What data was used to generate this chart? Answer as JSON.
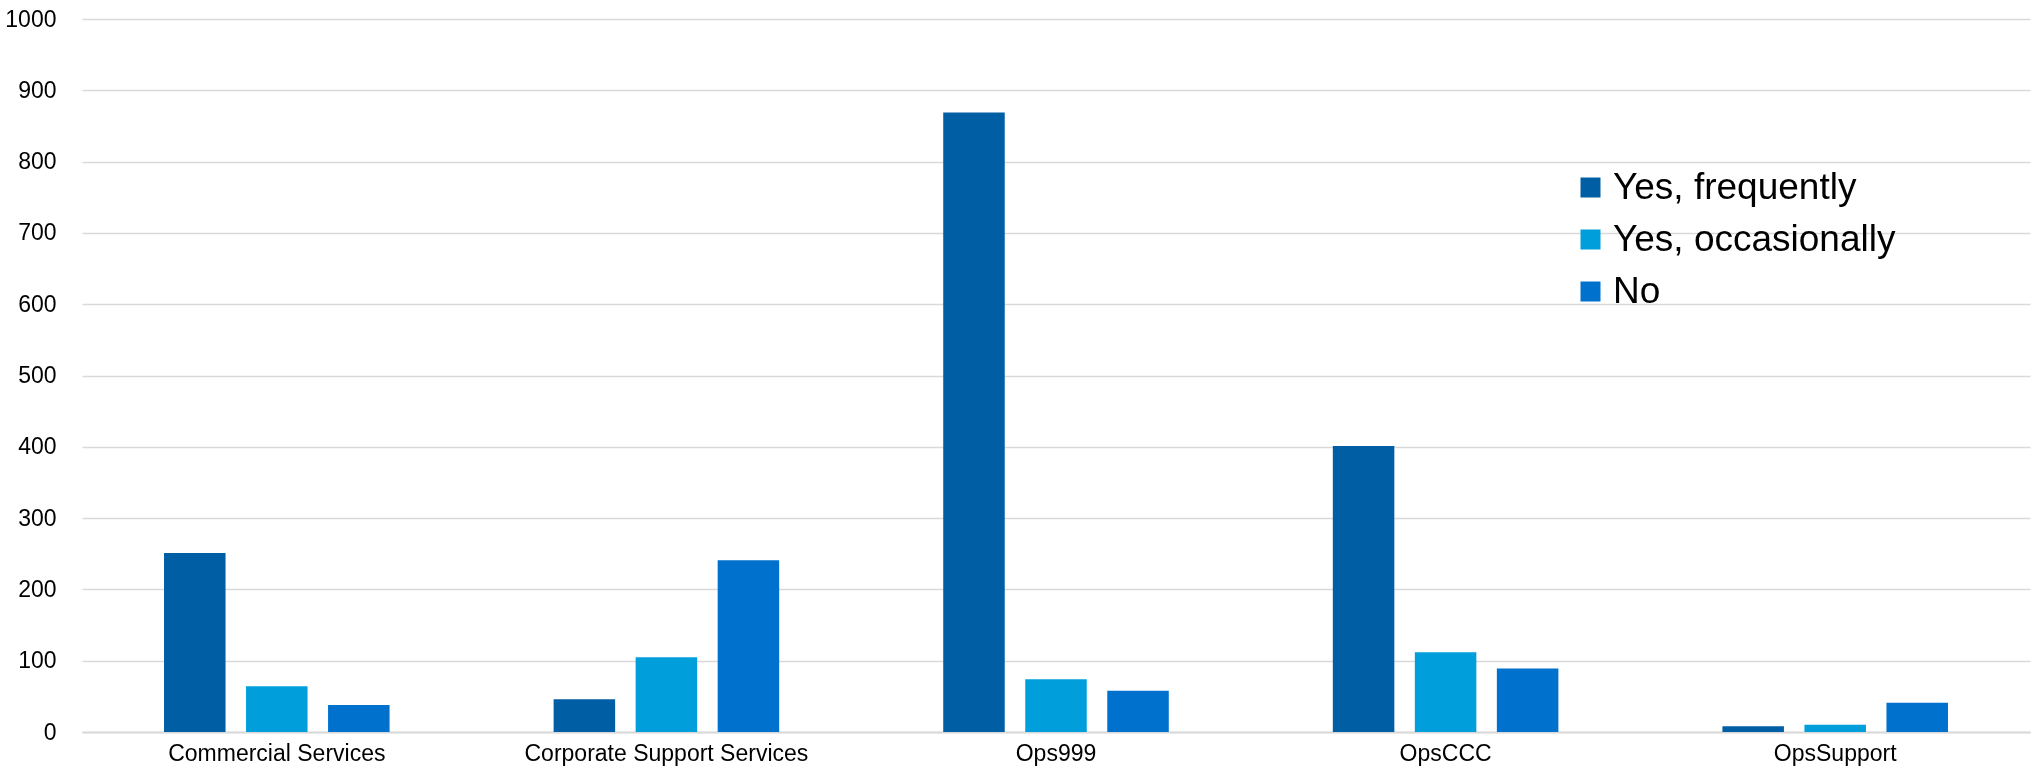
{
  "chart_data": {
    "type": "bar",
    "categories": [
      "Commercial Services",
      "Corporate Support Services",
      "Ops999",
      "OpsCCC",
      "OpsSupport"
    ],
    "series": [
      {
        "name": "Yes, frequently",
        "color": "#005ea5",
        "values": [
          251,
          46,
          869,
          401,
          8
        ]
      },
      {
        "name": "Yes, occasionally",
        "color": "#009fdb",
        "values": [
          64,
          105,
          74,
          112,
          10
        ]
      },
      {
        "name": "No",
        "color": "#0072ce",
        "values": [
          38,
          241,
          58,
          89,
          41
        ]
      }
    ],
    "ylim": [
      0,
      1000
    ],
    "yticks": [
      0,
      100,
      200,
      300,
      400,
      500,
      600,
      700,
      800,
      900,
      1000
    ],
    "grid": "y",
    "legend": "top right"
  }
}
